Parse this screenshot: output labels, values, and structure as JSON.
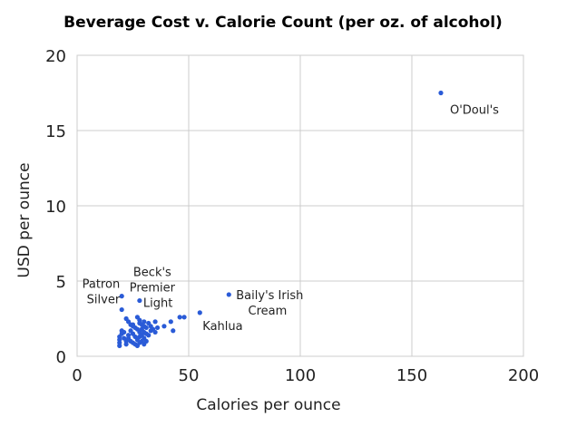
{
  "chart_data": {
    "type": "scatter",
    "title": "Beverage Cost v. Calorie Count (per oz. of alcohol)",
    "xlabel": "Calories per ounce",
    "ylabel": "USD per ounce",
    "xlim": [
      0,
      200
    ],
    "ylim": [
      0,
      20
    ],
    "xticks": [
      "0",
      "50",
      "100",
      "150",
      "200"
    ],
    "yticks": [
      "0",
      "5",
      "10",
      "15",
      "20"
    ],
    "grid": true,
    "point_color": "#2a5bd7",
    "points": [
      [
        163,
        17.5
      ],
      [
        68,
        4.1
      ],
      [
        55,
        2.9
      ],
      [
        20,
        4.0
      ],
      [
        28,
        3.7
      ],
      [
        20,
        3.1
      ],
      [
        46,
        2.6
      ],
      [
        48,
        2.6
      ],
      [
        42,
        2.3
      ],
      [
        43,
        1.7
      ],
      [
        39,
        2.0
      ],
      [
        35,
        2.3
      ],
      [
        36,
        1.9
      ],
      [
        22,
        2.5
      ],
      [
        23,
        2.3
      ],
      [
        24,
        2.1
      ],
      [
        25,
        2.0
      ],
      [
        26,
        1.9
      ],
      [
        27,
        2.6
      ],
      [
        28,
        2.4
      ],
      [
        28,
        2.2
      ],
      [
        29,
        2.1
      ],
      [
        30,
        2.0
      ],
      [
        30,
        2.3
      ],
      [
        31,
        1.9
      ],
      [
        32,
        2.2
      ],
      [
        33,
        2.0
      ],
      [
        34,
        1.8
      ],
      [
        35,
        1.6
      ],
      [
        20,
        1.7
      ],
      [
        20,
        1.5
      ],
      [
        19,
        1.3
      ],
      [
        19,
        1.1
      ],
      [
        19,
        0.9
      ],
      [
        19,
        0.7
      ],
      [
        21,
        1.6
      ],
      [
        21,
        1.2
      ],
      [
        22,
        1.0
      ],
      [
        22,
        0.8
      ],
      [
        23,
        1.4
      ],
      [
        23,
        1.2
      ],
      [
        24,
        1.7
      ],
      [
        24,
        1.0
      ],
      [
        25,
        0.9
      ],
      [
        25,
        1.5
      ],
      [
        26,
        1.3
      ],
      [
        26,
        0.8
      ],
      [
        27,
        1.1
      ],
      [
        27,
        0.7
      ],
      [
        28,
        1.6
      ],
      [
        28,
        1.3
      ],
      [
        28,
        0.9
      ],
      [
        29,
        1.8
      ],
      [
        29,
        1.0
      ],
      [
        30,
        1.2
      ],
      [
        30,
        0.8
      ],
      [
        31,
        1.5
      ],
      [
        31,
        1.0
      ],
      [
        32,
        1.4
      ],
      [
        33,
        1.7
      ],
      [
        30,
        1.6
      ],
      [
        27,
        1.8
      ],
      [
        25,
        2.1
      ],
      [
        29,
        1.4
      ]
    ],
    "labels": [
      {
        "point": 0,
        "lines": [
          "O'Doul's"
        ]
      },
      {
        "point": 1,
        "lines": [
          "Baily's Irish",
          "Cream"
        ]
      },
      {
        "point": 2,
        "lines": [
          "Kahlua"
        ]
      },
      {
        "point": 3,
        "lines": [
          "Patron",
          "Silver"
        ]
      },
      {
        "point": 4,
        "lines": [
          "Beck's",
          "Premier",
          "Light"
        ]
      }
    ]
  }
}
